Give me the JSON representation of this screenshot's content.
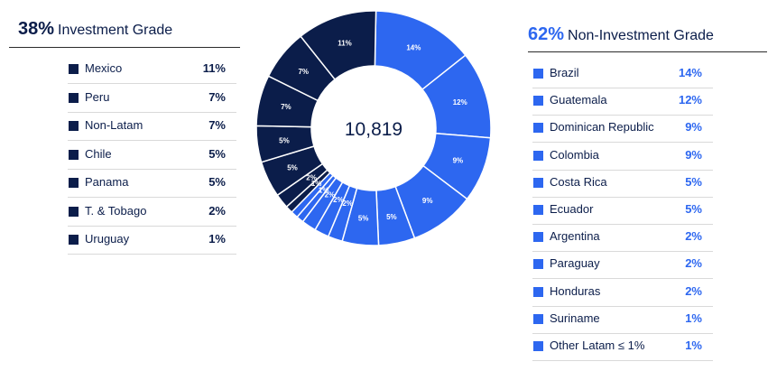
{
  "left": {
    "pct": "38%",
    "title": "Investment Grade",
    "rows": [
      {
        "name": "Mexico",
        "value": "11%"
      },
      {
        "name": "Peru",
        "value": "7%"
      },
      {
        "name": "Non-Latam",
        "value": "7%"
      },
      {
        "name": "Chile",
        "value": "5%"
      },
      {
        "name": "Panama",
        "value": "5%"
      },
      {
        "name": "T. & Tobago",
        "value": "2%"
      },
      {
        "name": "Uruguay",
        "value": "1%"
      }
    ]
  },
  "right": {
    "pct": "62%",
    "title": "Non-Investment Grade",
    "rows": [
      {
        "name": "Brazil",
        "value": "14%"
      },
      {
        "name": "Guatemala",
        "value": "12%"
      },
      {
        "name": "Dominican Republic",
        "value": "9%"
      },
      {
        "name": "Colombia",
        "value": "9%"
      },
      {
        "name": "Costa Rica",
        "value": "5%"
      },
      {
        "name": "Ecuador",
        "value": "5%"
      },
      {
        "name": "Argentina",
        "value": "2%"
      },
      {
        "name": "Paraguay",
        "value": "2%"
      },
      {
        "name": "Honduras",
        "value": "2%"
      },
      {
        "name": "Suriname",
        "value": "1%"
      },
      {
        "name": "Other Latam ≤ 1%",
        "value": "1%"
      }
    ]
  },
  "colors": {
    "investment": "#0b1d4a",
    "non_investment": "#2d67f0"
  },
  "chart_data": {
    "type": "pie",
    "variant": "donut",
    "center_label": "10,819",
    "slices": [
      {
        "label": "Brazil",
        "value": 14,
        "display": "14%",
        "group": "non_investment"
      },
      {
        "label": "Guatemala",
        "value": 12,
        "display": "12%",
        "group": "non_investment"
      },
      {
        "label": "Dominican Republic",
        "value": 9,
        "display": "9%",
        "group": "non_investment"
      },
      {
        "label": "Colombia",
        "value": 9,
        "display": "9%",
        "group": "non_investment"
      },
      {
        "label": "Costa Rica",
        "value": 5,
        "display": "5%",
        "group": "non_investment"
      },
      {
        "label": "Ecuador",
        "value": 5,
        "display": "5%",
        "group": "non_investment"
      },
      {
        "label": "Argentina",
        "value": 2,
        "display": "2%",
        "group": "non_investment"
      },
      {
        "label": "Paraguay",
        "value": 2,
        "display": "2%",
        "group": "non_investment"
      },
      {
        "label": "Honduras",
        "value": 2,
        "display": "2%",
        "group": "non_investment"
      },
      {
        "label": "Suriname",
        "value": 1,
        "display": "1%",
        "group": "non_investment"
      },
      {
        "label": "Other Latam ≤ 1%",
        "value": 1,
        "display": "",
        "group": "non_investment"
      },
      {
        "label": "Uruguay",
        "value": 1,
        "display": "1%",
        "group": "investment"
      },
      {
        "label": "T. & Tobago",
        "value": 2,
        "display": "2%",
        "group": "investment"
      },
      {
        "label": "Panama",
        "value": 5,
        "display": "5%",
        "group": "investment"
      },
      {
        "label": "Chile",
        "value": 5,
        "display": "5%",
        "group": "investment"
      },
      {
        "label": "Non-Latam",
        "value": 7,
        "display": "7%",
        "group": "investment"
      },
      {
        "label": "Peru",
        "value": 7,
        "display": "7%",
        "group": "investment"
      },
      {
        "label": "Mexico",
        "value": 11,
        "display": "11%",
        "group": "investment"
      }
    ]
  }
}
